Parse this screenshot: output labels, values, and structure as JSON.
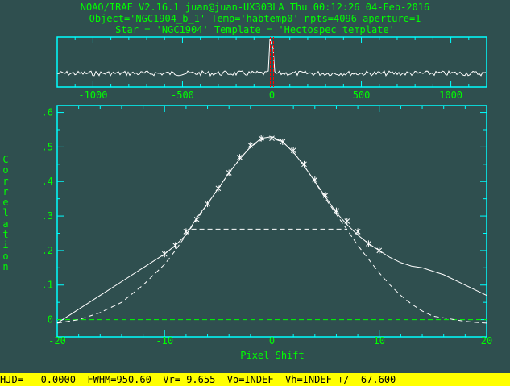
{
  "header": {
    "line1": "NOAO/IRAF V2.16.1 juan@juan-UX303LA Thu 00:12:26 04-Feb-2016",
    "line2": "Object='NGC1904_b_1' Temp='habtemp0' npts=4096 aperture=1",
    "line3": "Star = 'NGC1904' Template = 'Hectospec_template'"
  },
  "colors": {
    "background": "#2f4f4f",
    "frame": "#00ffff",
    "text": "#00ff00",
    "status_bg": "#ffff00",
    "curve": "#ffffff",
    "marker": "#ff0000"
  },
  "top_panel": {
    "x_ticks": [
      "-1000",
      "-500",
      "0",
      "500",
      "1000"
    ],
    "xlim": [
      -1200,
      1200
    ],
    "marker_x": 0
  },
  "chart_data": {
    "type": "line",
    "xlabel": "Pixel Shift",
    "ylabel": "Correlation",
    "xlim": [
      -20,
      20
    ],
    "ylim": [
      -0.05,
      0.62
    ],
    "x_ticks": [
      "-20",
      "-10",
      "0",
      "10",
      "20"
    ],
    "y_ticks": [
      "0",
      ".1",
      ".2",
      ".3",
      ".4",
      ".5",
      ".6"
    ],
    "series": [
      {
        "style": "solid",
        "x": [
          -20,
          -18,
          -16,
          -14,
          -12,
          -10,
          -9,
          -8,
          -7,
          -6,
          -5,
          -4,
          -3,
          -2,
          -1,
          0,
          1,
          2,
          3,
          4,
          5,
          6,
          7,
          8,
          9,
          10,
          11,
          12,
          13,
          14,
          15,
          16,
          17,
          18,
          19,
          20
        ],
        "y": [
          -0.01,
          0.03,
          0.07,
          0.11,
          0.15,
          0.19,
          0.215,
          0.245,
          0.295,
          0.335,
          0.38,
          0.425,
          0.465,
          0.5,
          0.525,
          0.53,
          0.515,
          0.485,
          0.445,
          0.4,
          0.355,
          0.31,
          0.275,
          0.245,
          0.22,
          0.2,
          0.18,
          0.165,
          0.155,
          0.15,
          0.14,
          0.13,
          0.115,
          0.1,
          0.085,
          0.07
        ]
      },
      {
        "style": "dashed",
        "x": [
          -20,
          -18,
          -16,
          -14,
          -12,
          -10,
          -9,
          -8,
          -7,
          -6,
          -5,
          -4,
          -3,
          -2,
          -1,
          0,
          1,
          2,
          3,
          4,
          5,
          6,
          7,
          8,
          9,
          10,
          11,
          12,
          13,
          14,
          15,
          16,
          17,
          18,
          19,
          20
        ],
        "y": [
          -0.01,
          0.0,
          0.02,
          0.05,
          0.1,
          0.16,
          0.2,
          0.245,
          0.29,
          0.335,
          0.38,
          0.425,
          0.465,
          0.5,
          0.52,
          0.525,
          0.515,
          0.485,
          0.445,
          0.4,
          0.35,
          0.305,
          0.26,
          0.215,
          0.175,
          0.135,
          0.1,
          0.07,
          0.045,
          0.025,
          0.01,
          0.005,
          0.0,
          -0.005,
          -0.008,
          -0.01
        ]
      }
    ],
    "fit_points": {
      "x": [
        -10,
        -9,
        -8,
        -7,
        -6,
        -5,
        -4,
        -3,
        -2,
        -1,
        0,
        1,
        2,
        3,
        4,
        5,
        6,
        7,
        8,
        9,
        10
      ],
      "y": [
        0.19,
        0.215,
        0.255,
        0.29,
        0.335,
        0.38,
        0.425,
        0.47,
        0.505,
        0.525,
        0.525,
        0.515,
        0.49,
        0.45,
        0.405,
        0.36,
        0.315,
        0.285,
        0.255,
        0.22,
        0.2
      ]
    },
    "fwhm_line": {
      "y": 0.262,
      "x": [
        -7.5,
        7.0
      ]
    },
    "zero_line": {
      "y": 0.0
    }
  },
  "status": "HJD=   0.0000  FWHM=950.60  Vr=-9.655  Vo=INDEF  Vh=INDEF +/- 67.600"
}
